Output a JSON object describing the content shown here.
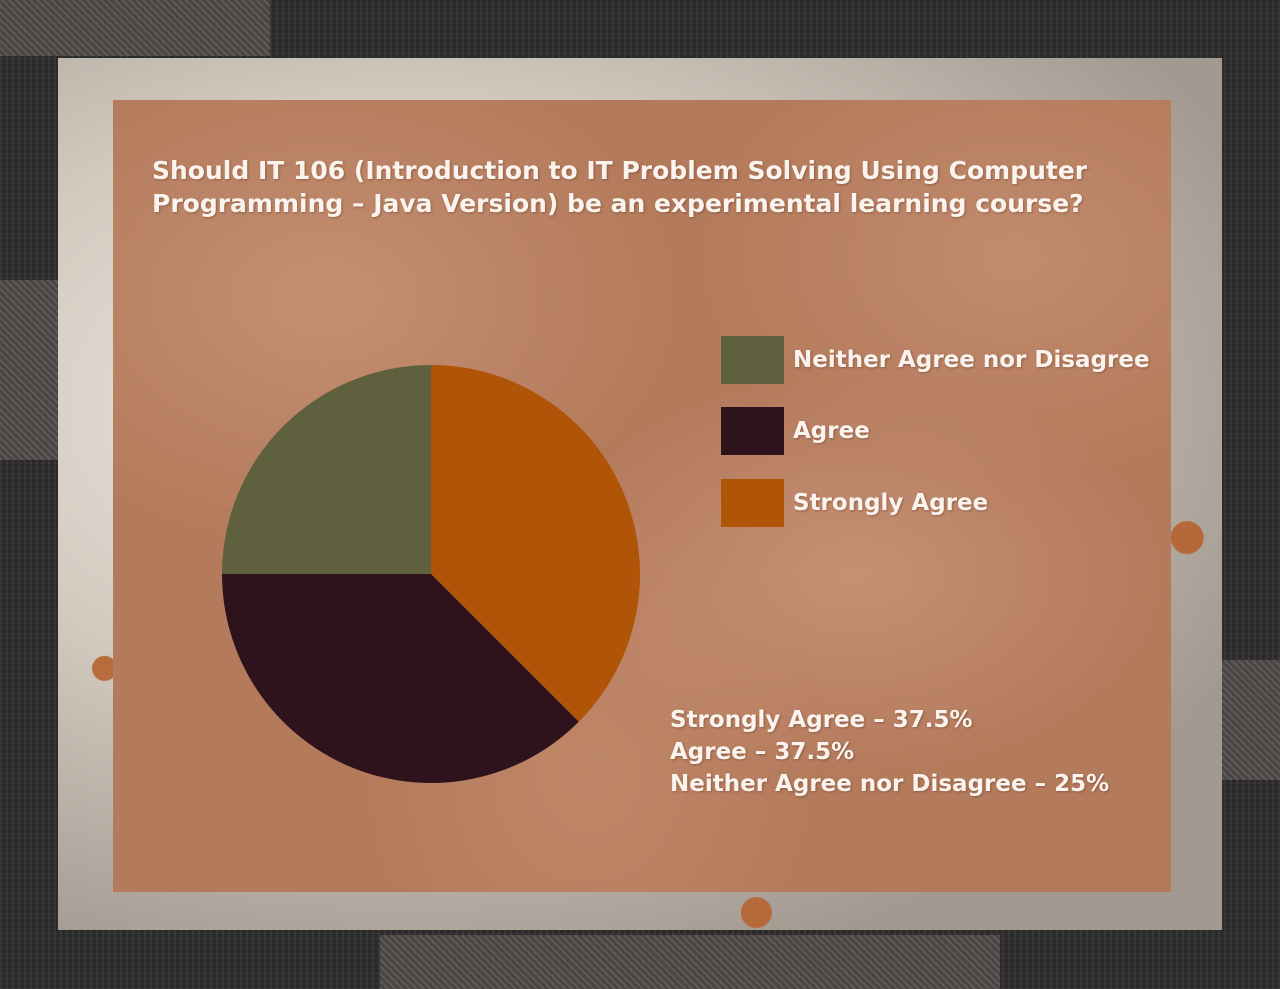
{
  "chart_data": {
    "type": "pie",
    "title": "Should IT 106 (Introduction to IT Problem Solving Using Computer Programming - Java Version) be an experimental learning course?",
    "categories": [
      "Neither Agree nor Disagree",
      "Agree",
      "Strongly Agree"
    ],
    "values": [
      25,
      37.5,
      37.5
    ],
    "unit": "%",
    "colors": [
      "#5e603e",
      "#2e131c",
      "#b05407"
    ],
    "legend": {
      "placement": "right",
      "entries": [
        "Neither Agree nor Disagree",
        "Agree",
        "Strongly Agree"
      ]
    },
    "annotations": [
      "Strongly Agree – 37.5%",
      "Agree – 37.5%",
      "Neither Agree nor Disagree – 25%"
    ]
  },
  "title_lines": [
    "Should IT 106 (Introduction to IT Problem Solving Using Computer",
    "Programming – Java Version) be an experimental learning course?"
  ]
}
